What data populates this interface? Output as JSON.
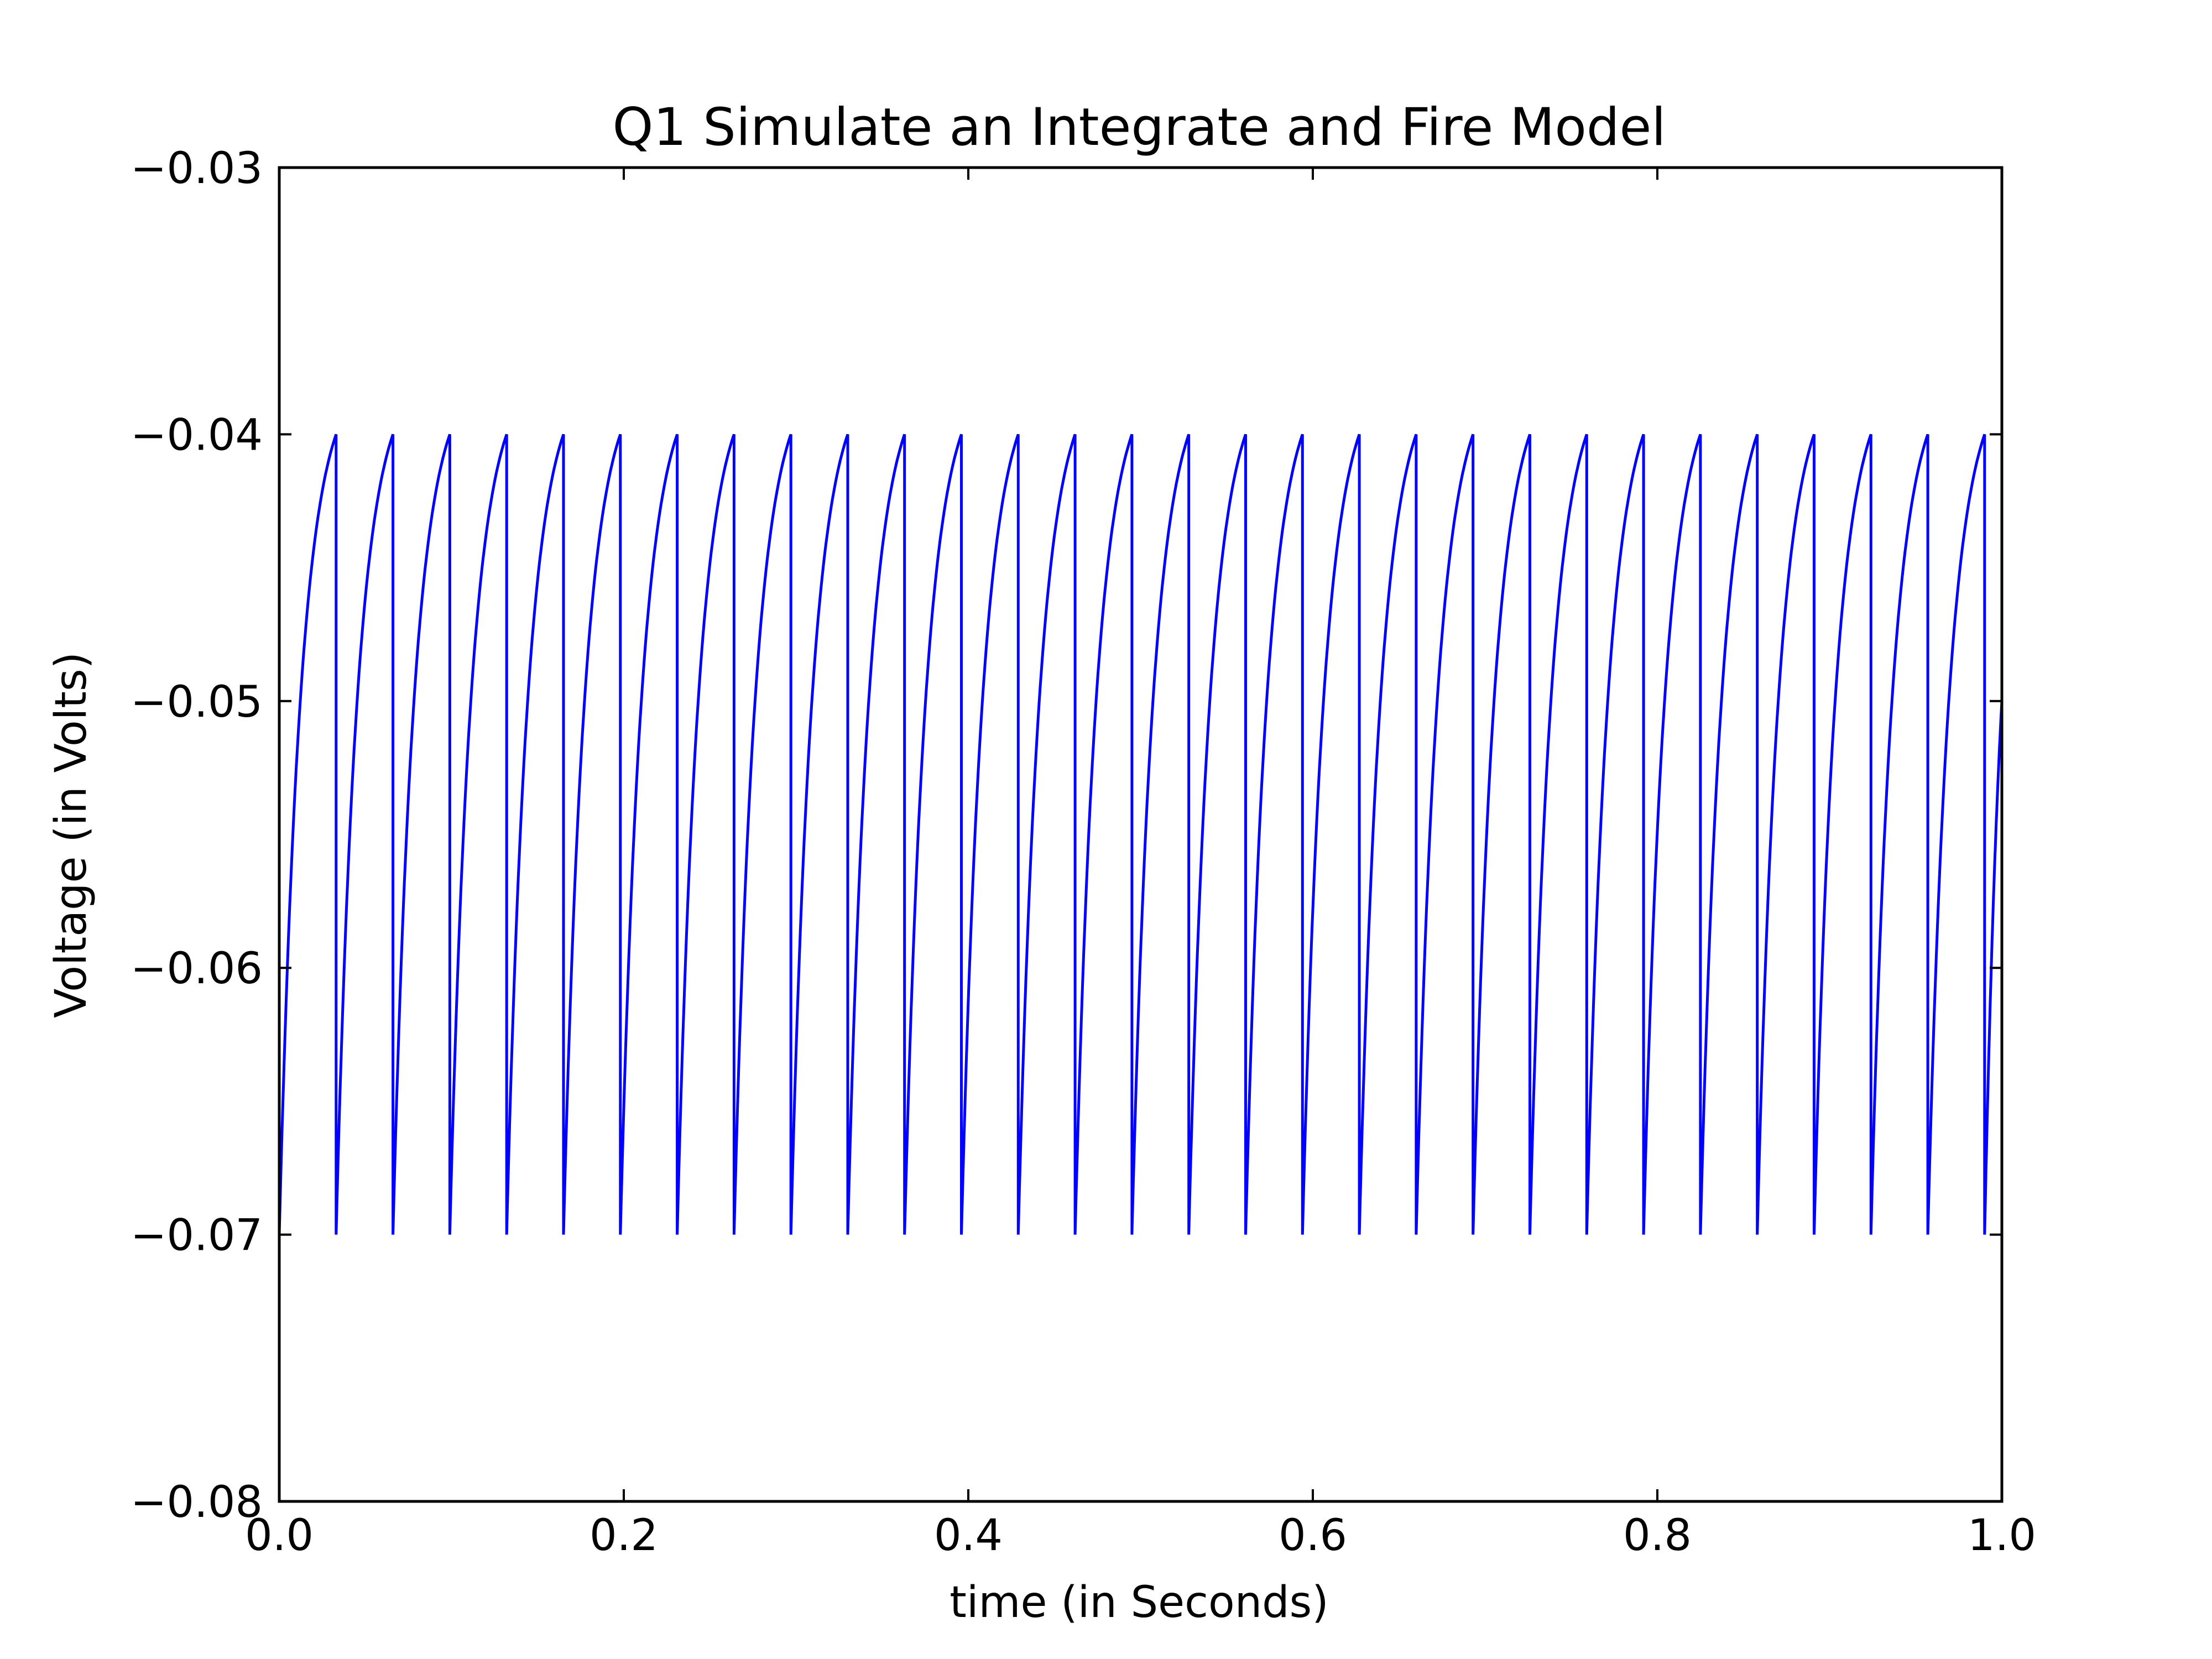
{
  "chart_data": {
    "type": "line",
    "title": "Q1 Simulate an Integrate and Fire Model",
    "xlabel": "time (in Seconds)",
    "ylabel": "Voltage (in Volts)",
    "xlim": [
      0.0,
      1.0
    ],
    "ylim": [
      -0.08,
      -0.03
    ],
    "xticks": [
      0.0,
      0.2,
      0.4,
      0.6,
      0.8,
      1.0
    ],
    "xtick_labels": [
      "0.0",
      "0.2",
      "0.4",
      "0.6",
      "0.8",
      "1.0"
    ],
    "yticks": [
      -0.08,
      -0.07,
      -0.06,
      -0.05,
      -0.04,
      -0.03
    ],
    "ytick_labels": [
      "−0.08",
      "−0.07",
      "−0.06",
      "−0.05",
      "−0.04",
      "−0.03"
    ],
    "grid": false,
    "line_color": "#0000ff",
    "series": [
      {
        "reset_voltage": -0.07,
        "threshold_voltage": -0.04,
        "spike_times": [
          0.033,
          0.066,
          0.099,
          0.132,
          0.165,
          0.198,
          0.231,
          0.264,
          0.297,
          0.33,
          0.363,
          0.396,
          0.429,
          0.462,
          0.495,
          0.528,
          0.561,
          0.594,
          0.627,
          0.66,
          0.693,
          0.726,
          0.759,
          0.792,
          0.825,
          0.858,
          0.891,
          0.924,
          0.957,
          0.99
        ],
        "final_value": -0.05
      }
    ]
  }
}
